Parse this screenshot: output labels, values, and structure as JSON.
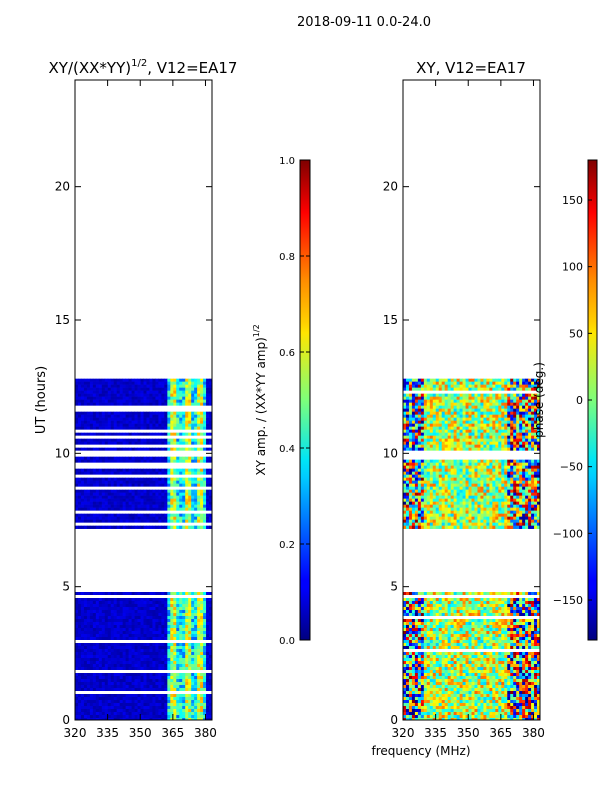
{
  "figure": {
    "suptitle": "2018-09-11 0.0-24.0",
    "xlabel_shared": "frequency (MHz)"
  },
  "chart_data": [
    {
      "type": "heatmap",
      "title_main": "XY/(XX*YY)",
      "title_sup": "1/2",
      "title_suffix": ", V12=EA17",
      "xlabel": "",
      "ylabel": "UT (hours)",
      "xlim": [
        320,
        383
      ],
      "ylim": [
        0,
        24
      ],
      "xticks": [
        320,
        335,
        350,
        365,
        380
      ],
      "yticks": [
        0,
        5,
        10,
        15,
        20
      ],
      "data_blocks_hours": [
        [
          0.0,
          4.8
        ],
        [
          7.2,
          12.8
        ]
      ],
      "colorbar": {
        "label_main": "XY amp. / (XX*YY amp)",
        "label_sup": "1/2",
        "range": [
          0.0,
          1.0
        ],
        "ticks": [
          "0.0",
          "0.2",
          "0.4",
          "0.6",
          "0.8",
          "1.0"
        ],
        "colormap": "jet"
      }
    },
    {
      "type": "heatmap",
      "title": "XY, V12=EA17",
      "xlabel": "frequency (MHz)",
      "ylabel": "",
      "xlim": [
        320,
        383
      ],
      "ylim": [
        0,
        24
      ],
      "xticks": [
        320,
        335,
        350,
        365,
        380
      ],
      "yticks": [
        0,
        5,
        10,
        15,
        20
      ],
      "data_blocks_hours": [
        [
          0.0,
          4.8
        ],
        [
          7.2,
          12.8
        ]
      ],
      "colorbar": {
        "label": "phase (deg.)",
        "range": [
          -180,
          180
        ],
        "ticks": [
          "−150",
          "−100",
          "−50",
          "0",
          "50",
          "100",
          "150"
        ],
        "tick_values": [
          -150,
          -100,
          -50,
          0,
          50,
          100,
          150
        ],
        "colormap": "jet"
      }
    }
  ]
}
